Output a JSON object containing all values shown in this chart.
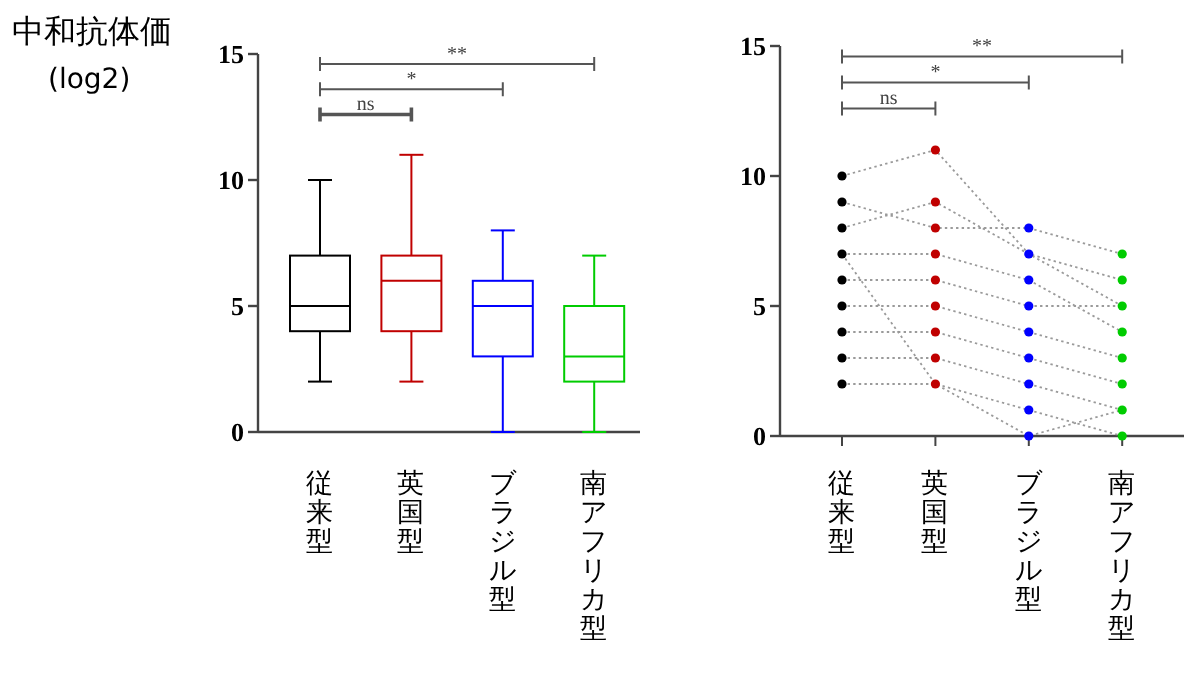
{
  "chart_data": [
    {
      "type": "box",
      "ylabel": "中和抗体価\n(log2)",
      "categories": [
        "従来型",
        "英国型",
        "ブラジル型",
        "南アフリカ型"
      ],
      "ylim": [
        0,
        15
      ],
      "yticks": [
        0,
        5,
        10,
        15
      ],
      "colors": [
        "#000000",
        "#c00000",
        "#0000ff",
        "#00cc00"
      ],
      "boxes": [
        {
          "low": 2,
          "q1": 4,
          "median": 5,
          "q3": 7,
          "high": 10
        },
        {
          "low": 2,
          "q1": 4,
          "median": 6,
          "q3": 7,
          "high": 11
        },
        {
          "low": 0,
          "q1": 3,
          "median": 5,
          "q3": 6,
          "high": 8
        },
        {
          "low": 0,
          "q1": 2,
          "median": 3,
          "q3": 5,
          "high": 7
        }
      ],
      "annotations": [
        "ns",
        "*",
        "**"
      ]
    },
    {
      "type": "scatter",
      "categories": [
        "従来型",
        "英国型",
        "ブラジル型",
        "南アフリカ型"
      ],
      "ylim": [
        0,
        15
      ],
      "yticks": [
        0,
        5,
        10,
        15
      ],
      "series": [
        {
          "type": "line",
          "color": "#9a9a9a",
          "line_style": "dotted",
          "values": [
            10,
            11,
            7,
            5
          ]
        },
        {
          "type": "line",
          "color": "#9a9a9a",
          "line_style": "dotted",
          "values": [
            9,
            8,
            8,
            7
          ]
        },
        {
          "type": "line",
          "color": "#9a9a9a",
          "line_style": "dotted",
          "values": [
            8,
            9,
            7,
            6
          ]
        },
        {
          "type": "line",
          "color": "#9a9a9a",
          "line_style": "dotted",
          "values": [
            7,
            7,
            6,
            4
          ]
        },
        {
          "type": "line",
          "color": "#9a9a9a",
          "line_style": "dotted",
          "values": [
            6,
            6,
            5,
            5
          ]
        },
        {
          "type": "line",
          "color": "#9a9a9a",
          "line_style": "dotted",
          "values": [
            5,
            5,
            4,
            3
          ]
        },
        {
          "type": "line",
          "color": "#9a9a9a",
          "line_style": "dotted",
          "values": [
            4,
            4,
            3,
            2
          ]
        },
        {
          "type": "line",
          "color": "#9a9a9a",
          "line_style": "dotted",
          "values": [
            3,
            3,
            2,
            1
          ]
        },
        {
          "type": "line",
          "color": "#9a9a9a",
          "line_style": "dotted",
          "values": [
            2,
            2,
            1,
            0
          ]
        },
        {
          "type": "line",
          "color": "#9a9a9a",
          "line_style": "dotted",
          "values": [
            7,
            2,
            0,
            1
          ]
        },
        {
          "type": "scatter",
          "color": "#000000",
          "x": [
            "従来型",
            "従来型",
            "従来型",
            "従来型",
            "従来型",
            "従来型",
            "従来型",
            "従来型",
            "従来型"
          ],
          "values": [
            2,
            3,
            4,
            5,
            6,
            7,
            8,
            9,
            10
          ]
        },
        {
          "type": "scatter",
          "color": "#c00000",
          "x": [
            "英国型",
            "英国型",
            "英国型",
            "英国型",
            "英国型",
            "英国型",
            "英国型",
            "英国型",
            "英国型"
          ],
          "values": [
            2,
            3,
            4,
            5,
            6,
            7,
            8,
            9,
            11
          ]
        },
        {
          "type": "scatter",
          "color": "#0000ff",
          "x": [
            "ブラジル型",
            "ブラジル型",
            "ブラジル型",
            "ブラジル型",
            "ブラジル型",
            "ブラジル型",
            "ブラジル型",
            "ブラジル型",
            "ブラジル型"
          ],
          "values": [
            0,
            1,
            2,
            3,
            4,
            5,
            6,
            7,
            8
          ]
        },
        {
          "type": "scatter",
          "color": "#00cc00",
          "x": [
            "南アフリカ型",
            "南アフリカ型",
            "南アフリカ型",
            "南アフリカ型",
            "南アフリカ型",
            "南アフリカ型",
            "南アフリカ型",
            "南アフリカ型"
          ],
          "values": [
            0,
            1,
            2,
            3,
            4,
            5,
            6,
            7
          ]
        }
      ],
      "annotations": [
        "ns",
        "*",
        "**"
      ]
    }
  ]
}
